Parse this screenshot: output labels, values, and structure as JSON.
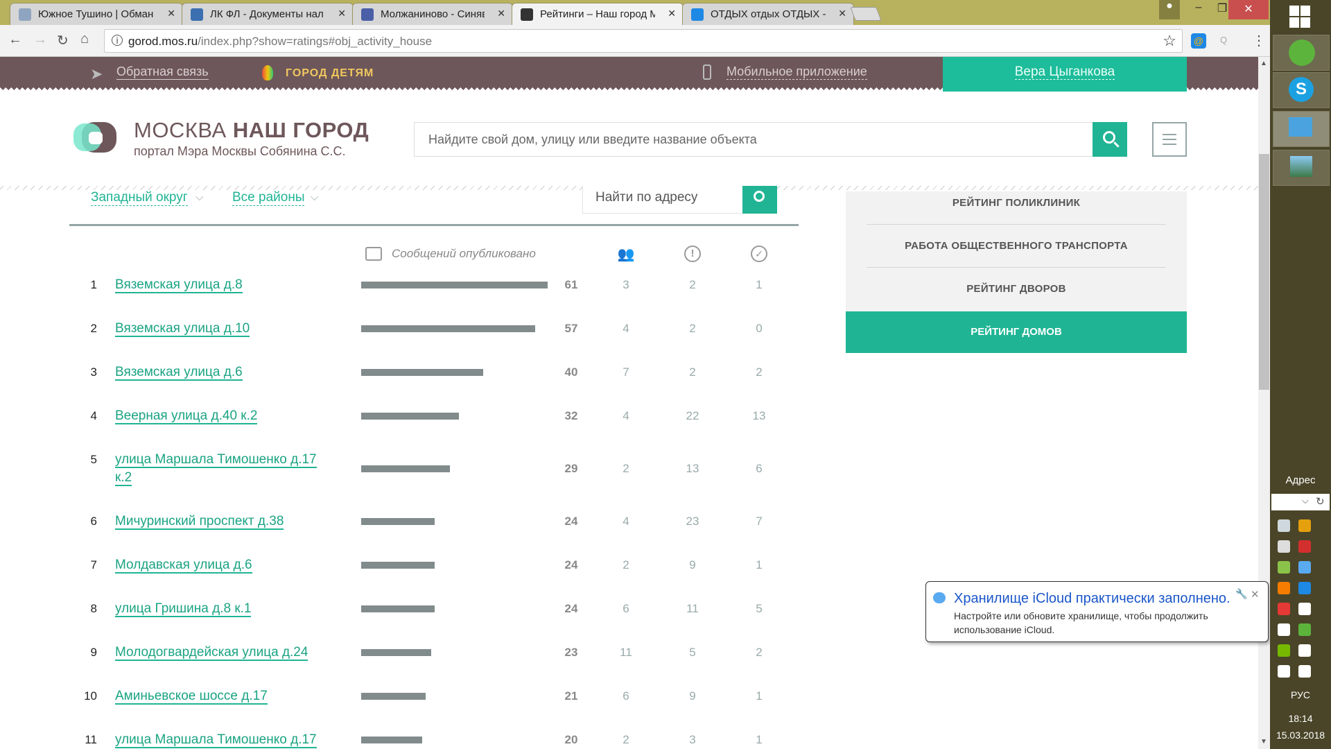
{
  "browser": {
    "tabs": [
      {
        "label": "Южное Тушино | Обман",
        "icon_color": "#8fa4c0",
        "active": false
      },
      {
        "label": "ЛК ФЛ - Документы нал",
        "icon_color": "#3c6fb0",
        "active": false
      },
      {
        "label": "Молжаниново - Синяви",
        "icon_color": "#4a5fa8",
        "active": false
      },
      {
        "label": "Рейтинги – Наш город М",
        "icon_color": "#333333",
        "active": true
      },
      {
        "label": "ОТДЫХ отдых ОТДЫХ -",
        "icon_color": "#1e88e5",
        "active": false
      }
    ],
    "url_host": "gorod.mos.ru",
    "url_path": "/index.php?show=ratings#obj_activity_house",
    "ext_label": "Q",
    "close_label": "✕"
  },
  "site": {
    "topbar": {
      "feedback": "Обратная связь",
      "kids": "ГОРОД ДЕТЯМ",
      "mobile": "Мобильное приложение",
      "user": "Вера Цыганкова"
    },
    "logo": {
      "title_light": "МОСКВА ",
      "title_bold": "НАШ ГОРОД",
      "subtitle": "портал Мэра Москвы Собянина С.С."
    },
    "search_placeholder": "Найдите свой дом, улицу или введите название объекта",
    "filters": {
      "district": "Западный округ",
      "area": "Все районы",
      "address_placeholder": "Найти по адресу"
    },
    "table_header": "Сообщений опубликовано",
    "rows": [
      {
        "rank": "1",
        "name": "Вяземская улица д.8",
        "messages": 61,
        "users": "3",
        "problems": "2",
        "solved": "1"
      },
      {
        "rank": "2",
        "name": "Вяземская улица д.10",
        "messages": 57,
        "users": "4",
        "problems": "2",
        "solved": "0"
      },
      {
        "rank": "3",
        "name": "Вяземская улица д.6",
        "messages": 40,
        "users": "7",
        "problems": "2",
        "solved": "2"
      },
      {
        "rank": "4",
        "name": "Веерная улица д.40 к.2",
        "messages": 32,
        "users": "4",
        "problems": "22",
        "solved": "13"
      },
      {
        "rank": "5",
        "name": "улица Маршала Тимошенко д.17 к.2",
        "messages": 29,
        "users": "2",
        "problems": "13",
        "solved": "6"
      },
      {
        "rank": "6",
        "name": "Мичуринский проспект д.38",
        "messages": 24,
        "users": "4",
        "problems": "23",
        "solved": "7"
      },
      {
        "rank": "7",
        "name": "Молдавская улица д.6",
        "messages": 24,
        "users": "2",
        "problems": "9",
        "solved": "1"
      },
      {
        "rank": "8",
        "name": "улица Гришина д.8 к.1",
        "messages": 24,
        "users": "6",
        "problems": "11",
        "solved": "5"
      },
      {
        "rank": "9",
        "name": "Молодогвардейская улица д.24",
        "messages": 23,
        "users": "11",
        "problems": "5",
        "solved": "2"
      },
      {
        "rank": "10",
        "name": "Аминьевское шоссе д.17",
        "messages": 21,
        "users": "6",
        "problems": "9",
        "solved": "1"
      },
      {
        "rank": "11",
        "name": "улица Маршала Тимошенко д.17",
        "messages": 20,
        "users": "2",
        "problems": "3",
        "solved": "1"
      }
    ],
    "ratings_menu": [
      {
        "label": "РЕЙТИНГ ПОЛИКЛИНИК"
      },
      {
        "label": "РАБОТА ОБЩЕСТВЕННОГО ТРАНСПОРТА"
      },
      {
        "label": "РЕЙТИНГ ДВОРОВ"
      }
    ],
    "ratings_active": "РЕЙТИНГ ДОМОВ",
    "accent": "#1dbc9a",
    "brand": "#6e575a"
  },
  "notification": {
    "title": "Хранилище iCloud практически заполнено.",
    "body": "Настройте или обновите хранилище, чтобы продолжить использование iCloud.",
    "close": "✕"
  },
  "taskbar": {
    "address_label": "Адрес",
    "language": "РУС",
    "time": "18:14",
    "date": "15.03.2018"
  }
}
